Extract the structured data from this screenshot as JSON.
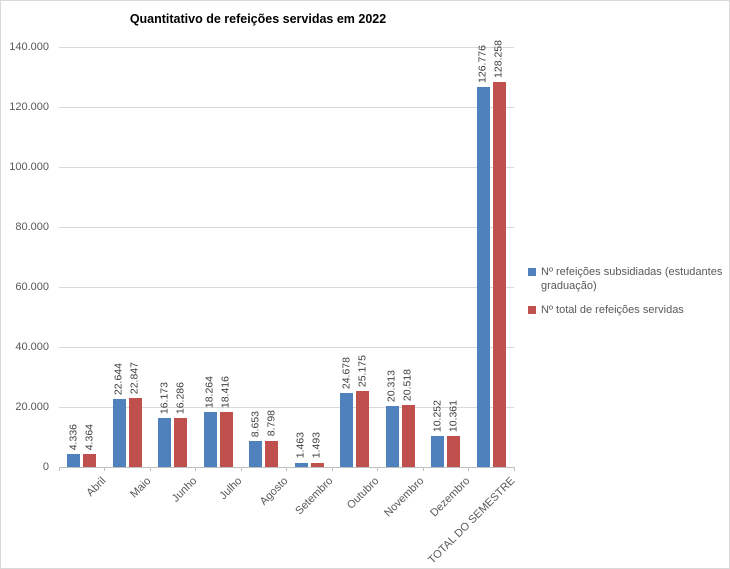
{
  "chart_data": {
    "type": "bar",
    "title": "Quantitativo de refeições servidas em 2022",
    "categories": [
      "Abril",
      "Maio",
      "Junho",
      "Julho",
      "Agosto",
      "Setembro",
      "Outubro",
      "Novembro",
      "Dezembro",
      "TOTAL DO SEMESTRE"
    ],
    "series": [
      {
        "name": "Nº refeições subsidiadas (estudantes graduação)",
        "color": "#4F81BD",
        "values": [
          4336,
          22644,
          16173,
          18264,
          8653,
          1463,
          24678,
          20313,
          10252,
          126776
        ],
        "labels": [
          "4.336",
          "22.644",
          "16.173",
          "18.264",
          "8.653",
          "1.463",
          "24.678",
          "20.313",
          "10.252",
          "126.776"
        ]
      },
      {
        "name": "Nº total de refeições servidas",
        "color": "#C0504D",
        "values": [
          4364,
          22847,
          16286,
          18416,
          8798,
          1493,
          25175,
          20518,
          10361,
          128258
        ],
        "labels": [
          "4.364",
          "22.847",
          "16.286",
          "18.416",
          "8.798",
          "1.493",
          "25.175",
          "20.518",
          "10.361",
          "128.258"
        ]
      }
    ],
    "ylim": [
      0,
      140000
    ],
    "ytick_step": 20000,
    "ytick_labels": [
      "0",
      "20.000",
      "40.000",
      "60.000",
      "80.000",
      "100.000",
      "120.000",
      "140.000"
    ],
    "grid": true,
    "legend_position": "right",
    "xlabel": "",
    "ylabel": ""
  }
}
